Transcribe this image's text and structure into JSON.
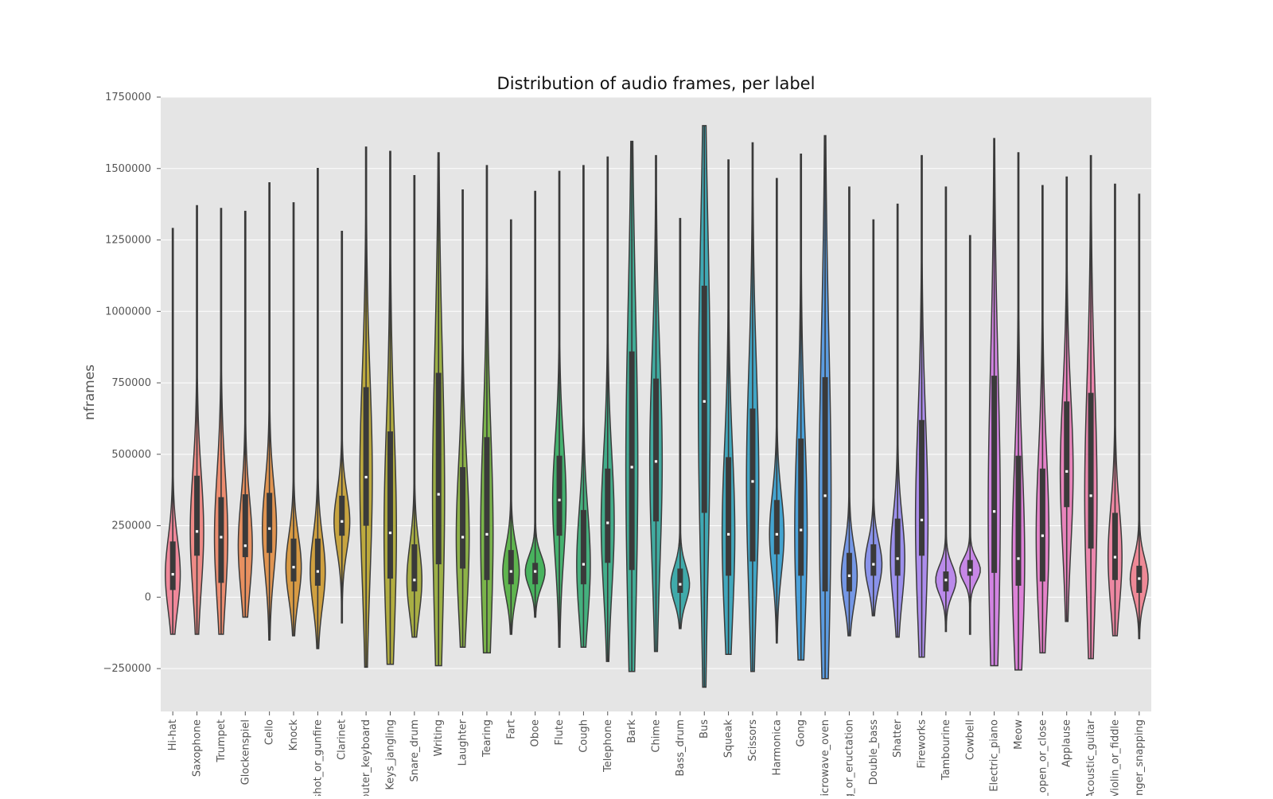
{
  "chart_data": {
    "type": "violin",
    "title": "Distribution of audio frames, per label",
    "xlabel": "",
    "ylabel": "nframes",
    "ylim": [
      -400000,
      1750000
    ],
    "yticks": [
      -250000,
      0,
      250000,
      500000,
      750000,
      1000000,
      1250000,
      1500000,
      1750000
    ],
    "ytick_labels": [
      "−250000",
      "0",
      "250000",
      "500000",
      "750000",
      "1000000",
      "1250000",
      "1500000",
      "1750000"
    ],
    "grid": true,
    "legend": "none",
    "colors": {
      "plot_background": "#e5e5e5",
      "grid": "#ffffff",
      "outline": "#3a3a3a",
      "box": "#3a3a3a",
      "median": "#ffffff"
    },
    "categories": [
      {
        "label": "Hi-hat",
        "min": -130000,
        "q1": 25000,
        "median": 80000,
        "q3": 195000,
        "max": 1290000,
        "color": "#f0889a"
      },
      {
        "label": "Saxophone",
        "min": -130000,
        "q1": 145000,
        "median": 230000,
        "q3": 425000,
        "max": 1370000,
        "color": "#ee8a86"
      },
      {
        "label": "Trumpet",
        "min": -130000,
        "q1": 50000,
        "median": 210000,
        "q3": 350000,
        "max": 1360000,
        "color": "#ec8c70"
      },
      {
        "label": "Glockenspiel",
        "min": -70000,
        "q1": 140000,
        "median": 180000,
        "q3": 360000,
        "max": 1350000,
        "color": "#e89060"
      },
      {
        "label": "Cello",
        "min": -150000,
        "q1": 155000,
        "median": 240000,
        "q3": 365000,
        "max": 1450000,
        "color": "#e09451"
      },
      {
        "label": "Knock",
        "min": -135000,
        "q1": 55000,
        "median": 105000,
        "q3": 205000,
        "max": 1380000,
        "color": "#d89a44"
      },
      {
        "label": "Gunshot_or_gunfire",
        "min": -180000,
        "q1": 40000,
        "median": 90000,
        "q3": 205000,
        "max": 1500000,
        "color": "#cfa040"
      },
      {
        "label": "Clarinet",
        "min": -90000,
        "q1": 215000,
        "median": 265000,
        "q3": 355000,
        "max": 1280000,
        "color": "#c7a440"
      },
      {
        "label": "Computer_keyboard",
        "min": -245000,
        "q1": 250000,
        "median": 420000,
        "q3": 735000,
        "max": 1575000,
        "color": "#bdaa3e"
      },
      {
        "label": "Keys_jangling",
        "min": -235000,
        "q1": 65000,
        "median": 225000,
        "q3": 580000,
        "max": 1560000,
        "color": "#b2ad40"
      },
      {
        "label": "Snare_drum",
        "min": -140000,
        "q1": 20000,
        "median": 60000,
        "q3": 185000,
        "max": 1475000,
        "color": "#a8ae44"
      },
      {
        "label": "Writing",
        "min": -240000,
        "q1": 115000,
        "median": 360000,
        "q3": 785000,
        "max": 1555000,
        "color": "#9cb046"
      },
      {
        "label": "Laughter",
        "min": -175000,
        "q1": 100000,
        "median": 210000,
        "q3": 455000,
        "max": 1425000,
        "color": "#8db248"
      },
      {
        "label": "Tearing",
        "min": -195000,
        "q1": 60000,
        "median": 220000,
        "q3": 560000,
        "max": 1510000,
        "color": "#7ab44a"
      },
      {
        "label": "Fart",
        "min": -130000,
        "q1": 45000,
        "median": 90000,
        "q3": 165000,
        "max": 1320000,
        "color": "#5fb54e"
      },
      {
        "label": "Oboe",
        "min": -70000,
        "q1": 45000,
        "median": 90000,
        "q3": 120000,
        "max": 1420000,
        "color": "#48b35e"
      },
      {
        "label": "Flute",
        "min": -175000,
        "q1": 215000,
        "median": 340000,
        "q3": 495000,
        "max": 1490000,
        "color": "#45b26f"
      },
      {
        "label": "Cough",
        "min": -175000,
        "q1": 45000,
        "median": 115000,
        "q3": 305000,
        "max": 1510000,
        "color": "#45b07e"
      },
      {
        "label": "Telephone",
        "min": -225000,
        "q1": 120000,
        "median": 260000,
        "q3": 450000,
        "max": 1540000,
        "color": "#43ae8b"
      },
      {
        "label": "Bark",
        "min": -260000,
        "q1": 95000,
        "median": 455000,
        "q3": 860000,
        "max": 1595000,
        "color": "#42ad96"
      },
      {
        "label": "Chime",
        "min": -190000,
        "q1": 265000,
        "median": 475000,
        "q3": 765000,
        "max": 1545000,
        "color": "#41aba0"
      },
      {
        "label": "Bass_drum",
        "min": -110000,
        "q1": 15000,
        "median": 45000,
        "q3": 100000,
        "max": 1325000,
        "color": "#40aaaa"
      },
      {
        "label": "Bus",
        "min": -315000,
        "q1": 295000,
        "median": 685000,
        "q3": 1090000,
        "max": 1650000,
        "color": "#40a9b4"
      },
      {
        "label": "Squeak",
        "min": -200000,
        "q1": 75000,
        "median": 220000,
        "q3": 490000,
        "max": 1530000,
        "color": "#41a8bd"
      },
      {
        "label": "Scissors",
        "min": -260000,
        "q1": 125000,
        "median": 405000,
        "q3": 660000,
        "max": 1590000,
        "color": "#42a6c6"
      },
      {
        "label": "Harmonica",
        "min": -160000,
        "q1": 150000,
        "median": 220000,
        "q3": 340000,
        "max": 1465000,
        "color": "#44a4d0"
      },
      {
        "label": "Gong",
        "min": -220000,
        "q1": 75000,
        "median": 235000,
        "q3": 555000,
        "max": 1550000,
        "color": "#4aa1da"
      },
      {
        "label": "Microwave_oven",
        "min": -285000,
        "q1": 20000,
        "median": 355000,
        "q3": 770000,
        "max": 1615000,
        "color": "#5c9ce0"
      },
      {
        "label": "Burping_or_eructation",
        "min": -135000,
        "q1": 20000,
        "median": 75000,
        "q3": 155000,
        "max": 1435000,
        "color": "#7497e6"
      },
      {
        "label": "Double_bass",
        "min": -65000,
        "q1": 75000,
        "median": 115000,
        "q3": 185000,
        "max": 1320000,
        "color": "#8a93ea"
      },
      {
        "label": "Shatter",
        "min": -140000,
        "q1": 75000,
        "median": 135000,
        "q3": 275000,
        "max": 1375000,
        "color": "#9c90ec"
      },
      {
        "label": "Fireworks",
        "min": -210000,
        "q1": 145000,
        "median": 270000,
        "q3": 620000,
        "max": 1545000,
        "color": "#ac8dec"
      },
      {
        "label": "Tambourine",
        "min": -120000,
        "q1": 20000,
        "median": 60000,
        "q3": 90000,
        "max": 1435000,
        "color": "#ba8aea"
      },
      {
        "label": "Cowbell",
        "min": -130000,
        "q1": 75000,
        "median": 95000,
        "q3": 130000,
        "max": 1265000,
        "color": "#c787e7"
      },
      {
        "label": "Electric_piano",
        "min": -240000,
        "q1": 85000,
        "median": 300000,
        "q3": 775000,
        "max": 1605000,
        "color": "#d284e2"
      },
      {
        "label": "Meow",
        "min": -255000,
        "q1": 40000,
        "median": 135000,
        "q3": 495000,
        "max": 1555000,
        "color": "#dd82d8"
      },
      {
        "label": "Drawer_open_or_close",
        "min": -195000,
        "q1": 55000,
        "median": 215000,
        "q3": 450000,
        "max": 1440000,
        "color": "#e482c9"
      },
      {
        "label": "Applause",
        "min": -85000,
        "q1": 315000,
        "median": 440000,
        "q3": 685000,
        "max": 1470000,
        "color": "#e884bb"
      },
      {
        "label": "Acoustic_guitar",
        "min": -215000,
        "q1": 170000,
        "median": 355000,
        "q3": 715000,
        "max": 1545000,
        "color": "#eb86ad"
      },
      {
        "label": "Violin_or_fiddle",
        "min": -135000,
        "q1": 60000,
        "median": 140000,
        "q3": 295000,
        "max": 1445000,
        "color": "#ed88a2"
      },
      {
        "label": "Finger_snapping",
        "min": -145000,
        "q1": 15000,
        "median": 65000,
        "q3": 110000,
        "max": 1410000,
        "color": "#ee8996"
      }
    ]
  }
}
